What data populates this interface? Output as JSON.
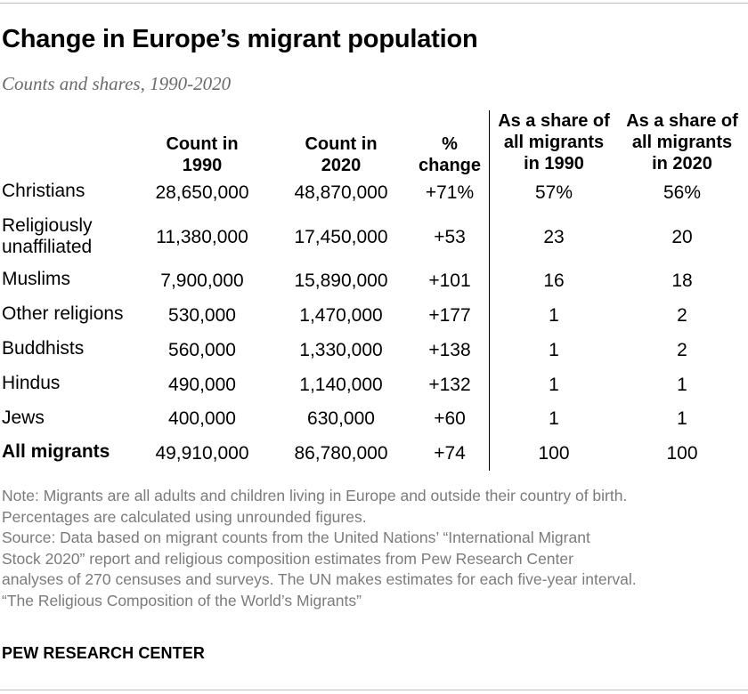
{
  "title": "Change in Europe’s migrant population",
  "subtitle": "Counts and shares, 1990-2020",
  "chart_data": {
    "type": "table",
    "columns": [
      {
        "line1": "Count in",
        "line2": "1990"
      },
      {
        "line1": "Count in",
        "line2": "2020"
      },
      {
        "line1": "%",
        "line2": "change"
      },
      {
        "line1": "As a share of",
        "line2": "all migrants",
        "line3": "in 1990"
      },
      {
        "line1": "As a share of",
        "line2": "all migrants",
        "line3": "in 2020"
      }
    ],
    "rows": [
      {
        "label": "Christians",
        "count_1990": "28,650,000",
        "count_2020": "48,870,000",
        "pct_change": "+71%",
        "share_1990": "57%",
        "share_2020": "56%"
      },
      {
        "label": "Religiously",
        "label2": "unaffiliated",
        "count_1990": "11,380,000",
        "count_2020": "17,450,000",
        "pct_change": "+53",
        "share_1990": "23",
        "share_2020": "20"
      },
      {
        "label": "Muslims",
        "count_1990": "7,900,000",
        "count_2020": "15,890,000",
        "pct_change": "+101",
        "share_1990": "16",
        "share_2020": "18"
      },
      {
        "label": "Other religions",
        "count_1990": "530,000",
        "count_2020": "1,470,000",
        "pct_change": "+177",
        "share_1990": "1",
        "share_2020": "2"
      },
      {
        "label": "Buddhists",
        "count_1990": "560,000",
        "count_2020": "1,330,000",
        "pct_change": "+138",
        "share_1990": "1",
        "share_2020": "2"
      },
      {
        "label": "Hindus",
        "count_1990": "490,000",
        "count_2020": "1,140,000",
        "pct_change": "+132",
        "share_1990": "1",
        "share_2020": "1"
      },
      {
        "label": "Jews",
        "count_1990": "400,000",
        "count_2020": "630,000",
        "pct_change": "+60",
        "share_1990": "1",
        "share_2020": "1"
      },
      {
        "label": "All migrants",
        "count_1990": "49,910,000",
        "count_2020": "86,780,000",
        "pct_change": "+74",
        "share_1990": "100",
        "share_2020": "100"
      }
    ]
  },
  "notes": [
    "Note: Migrants are all adults and children living in Europe and outside their country of birth.",
    "Percentages are calculated using unrounded figures.",
    "Source: Data based on migrant counts from the United Nations’ “International Migrant",
    "Stock 2020” report and religious composition estimates from Pew Research Center",
    "analyses of 270 censuses and surveys. The UN makes estimates for each five-year interval.",
    "“The Religious Composition of the World’s Migrants”"
  ],
  "organization": "PEW RESEARCH CENTER"
}
